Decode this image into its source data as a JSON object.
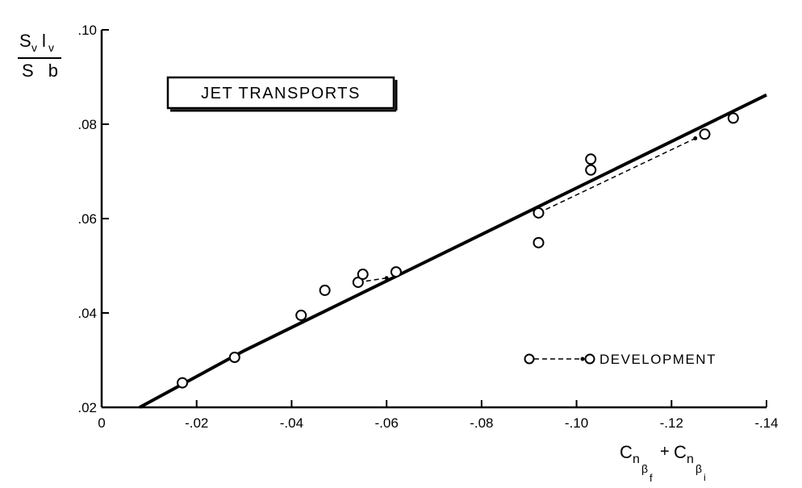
{
  "chart_data": {
    "type": "scatter",
    "title": "JET TRANSPORTS",
    "ylabel": {
      "num_main_1": "S",
      "num_sub_1": "v",
      "num_main_2": "l",
      "num_sub_2": "v",
      "den": "S b"
    },
    "xlabel": {
      "c1": "C",
      "n1": "n",
      "beta1": "β",
      "f": "f",
      "plus": "+",
      "c2": "C",
      "n2": "n",
      "beta2": "β",
      "i": "i"
    },
    "xlim": [
      0,
      -0.14
    ],
    "ylim": [
      0.02,
      0.1
    ],
    "x_ticks": [
      {
        "value": 0,
        "label": "0"
      },
      {
        "value": -0.02,
        "label": "-.02"
      },
      {
        "value": -0.04,
        "label": "-.04"
      },
      {
        "value": -0.06,
        "label": "-.06"
      },
      {
        "value": -0.08,
        "label": "-.08"
      },
      {
        "value": -0.1,
        "label": "-.10"
      },
      {
        "value": -0.12,
        "label": "-.12"
      },
      {
        "value": -0.14,
        "label": "-.14"
      }
    ],
    "y_ticks": [
      {
        "value": 0.02,
        "label": ".02"
      },
      {
        "value": 0.04,
        "label": ".04"
      },
      {
        "value": 0.06,
        "label": ".06"
      },
      {
        "value": 0.08,
        "label": ".08"
      },
      {
        "value": 0.1,
        "label": ".10"
      }
    ],
    "series": [
      {
        "points": [
          {
            "x": -0.017,
            "y": 0.0252
          },
          {
            "x": -0.028,
            "y": 0.0306
          },
          {
            "x": -0.042,
            "y": 0.0395
          },
          {
            "x": -0.047,
            "y": 0.0448
          },
          {
            "x": -0.054,
            "y": 0.0465
          },
          {
            "x": -0.055,
            "y": 0.0482
          },
          {
            "x": -0.062,
            "y": 0.0487
          },
          {
            "x": -0.092,
            "y": 0.0549
          },
          {
            "x": -0.092,
            "y": 0.0612
          },
          {
            "x": -0.103,
            "y": 0.0703
          },
          {
            "x": -0.103,
            "y": 0.0726
          },
          {
            "x": -0.127,
            "y": 0.0779
          },
          {
            "x": -0.133,
            "y": 0.0813
          }
        ]
      }
    ],
    "fit_line": [
      {
        "x": -0.008,
        "y": 0.02
      },
      {
        "x": -0.03,
        "y": 0.032
      },
      {
        "x": -0.14,
        "y": 0.0862
      }
    ],
    "development_lines": [
      [
        {
          "x": -0.054,
          "y": 0.0465
        },
        {
          "x": -0.06,
          "y": 0.0474
        }
      ],
      [
        {
          "x": -0.092,
          "y": 0.0612
        },
        {
          "x": -0.125,
          "y": 0.077
        }
      ]
    ],
    "legend": {
      "label": "DEVELOPMENT",
      "position": "bottom-right"
    }
  }
}
